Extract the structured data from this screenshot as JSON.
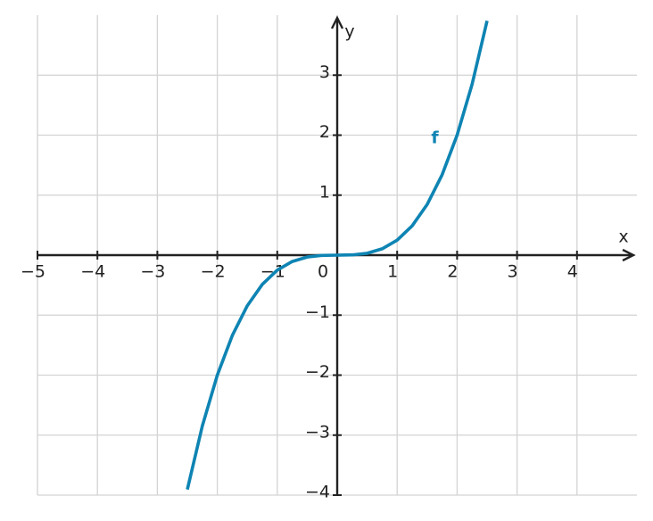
{
  "chart_data": {
    "type": "line",
    "x_label": "x",
    "y_label": "y",
    "x": [
      -2.5,
      -2.25,
      -2,
      -1.75,
      -1.5,
      -1.25,
      -1,
      -0.75,
      -0.5,
      -0.25,
      0,
      0.25,
      0.5,
      0.75,
      1,
      1.25,
      1.5,
      1.75,
      2,
      2.25,
      2.5
    ],
    "series": [
      {
        "name": "f",
        "color": "#0e84b3",
        "values": [
          -3.90625,
          -2.84766,
          -2,
          -1.33984,
          -0.84375,
          -0.48828,
          -0.25,
          -0.10547,
          -0.03125,
          -0.00391,
          0,
          0.00391,
          0.03125,
          0.10547,
          0.25,
          0.48828,
          0.84375,
          1.33984,
          2,
          2.84766,
          3.90625
        ]
      }
    ],
    "xlim": [
      -5,
      5
    ],
    "ylim": [
      -4,
      4
    ],
    "xticks": [
      {
        "value": -5,
        "label": "−5"
      },
      {
        "value": -4,
        "label": "−4"
      },
      {
        "value": -3,
        "label": "−3"
      },
      {
        "value": -2,
        "label": "−2"
      },
      {
        "value": -1,
        "label": "−1"
      },
      0,
      1,
      2,
      3,
      4
    ],
    "yticks": [
      {
        "value": -4,
        "label": "−4"
      },
      {
        "value": -3,
        "label": "−3"
      },
      {
        "value": -2,
        "label": "−2"
      },
      {
        "value": -1,
        "label": "−1"
      },
      1,
      2,
      3
    ],
    "grid": true
  }
}
